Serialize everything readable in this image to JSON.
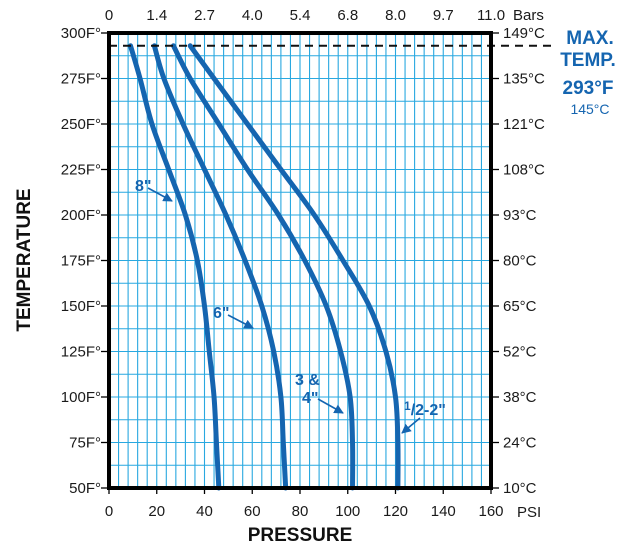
{
  "chart_data": {
    "type": "line",
    "xlabel": "PRESSURE",
    "x_unit": "PSI",
    "x_unit_top": "Bars",
    "ylabel": "TEMPERATURE",
    "xlim": [
      0,
      160
    ],
    "ylim": [
      50,
      300
    ],
    "x_ticks": [
      0,
      20,
      40,
      60,
      80,
      100,
      120,
      140,
      160
    ],
    "x_ticks_top": [
      "0",
      "1.4",
      "2.7",
      "4.0",
      "5.4",
      "6.8",
      "8.0",
      "9.7",
      "11.0"
    ],
    "y_ticks": [
      {
        "value": 50,
        "label": "50F°"
      },
      {
        "value": 75,
        "label": "75F°"
      },
      {
        "value": 100,
        "label": "100F°"
      },
      {
        "value": 125,
        "label": "125F°"
      },
      {
        "value": 150,
        "label": "150F°"
      },
      {
        "value": 175,
        "label": "175F°"
      },
      {
        "value": 200,
        "label": "200F°"
      },
      {
        "value": 225,
        "label": "225F°"
      },
      {
        "value": 250,
        "label": "250F°"
      },
      {
        "value": 275,
        "label": "275F°"
      },
      {
        "value": 300,
        "label": "300F°"
      }
    ],
    "y_ticks_right": [
      "10°C",
      "24°C",
      "38°C",
      "52°C",
      "65°C",
      "80°C",
      "93°C",
      "108°C",
      "121°C",
      "135°C",
      "149°C"
    ],
    "grid": true,
    "max_temp": {
      "value": 293,
      "line1": "MAX.",
      "line2": "TEMP.",
      "line3": "293°F",
      "line4": "145°C"
    },
    "series": [
      {
        "name": "8\"",
        "color": "#1565b0",
        "points": [
          [
            46,
            50
          ],
          [
            45,
            75
          ],
          [
            44,
            100
          ],
          [
            42,
            125
          ],
          [
            40,
            150
          ],
          [
            37,
            175
          ],
          [
            32,
            200
          ],
          [
            25,
            225
          ],
          [
            18,
            250
          ],
          [
            13,
            275
          ],
          [
            9,
            293
          ]
        ]
      },
      {
        "name": "6\"",
        "color": "#1565b0",
        "points": [
          [
            74,
            50
          ],
          [
            73,
            75
          ],
          [
            72,
            100
          ],
          [
            69,
            125
          ],
          [
            64,
            150
          ],
          [
            57,
            175
          ],
          [
            49,
            200
          ],
          [
            40,
            225
          ],
          [
            31,
            250
          ],
          [
            23,
            275
          ],
          [
            19,
            293
          ]
        ]
      },
      {
        "name": "3 & 4\"",
        "color": "#1565b0",
        "points": [
          [
            102,
            50
          ],
          [
            102,
            75
          ],
          [
            101,
            100
          ],
          [
            97,
            125
          ],
          [
            91,
            150
          ],
          [
            82,
            175
          ],
          [
            71,
            200
          ],
          [
            58,
            225
          ],
          [
            46,
            250
          ],
          [
            34,
            275
          ],
          [
            27,
            293
          ]
        ]
      },
      {
        "name": "1/2-2\"",
        "color": "#1565b0",
        "points": [
          [
            121,
            50
          ],
          [
            121,
            75
          ],
          [
            120,
            100
          ],
          [
            116,
            125
          ],
          [
            109,
            150
          ],
          [
            98,
            175
          ],
          [
            86,
            200
          ],
          [
            72,
            225
          ],
          [
            58,
            250
          ],
          [
            44,
            275
          ],
          [
            34,
            293
          ]
        ]
      }
    ],
    "annotations": [
      {
        "text": "8\"",
        "series": 0
      },
      {
        "text": "6\"",
        "series": 1
      },
      {
        "line1": "3 &",
        "line2": "4\"",
        "series": 2
      },
      {
        "sup": "1",
        "sub": "/2-2\"",
        "series": 3
      }
    ]
  }
}
